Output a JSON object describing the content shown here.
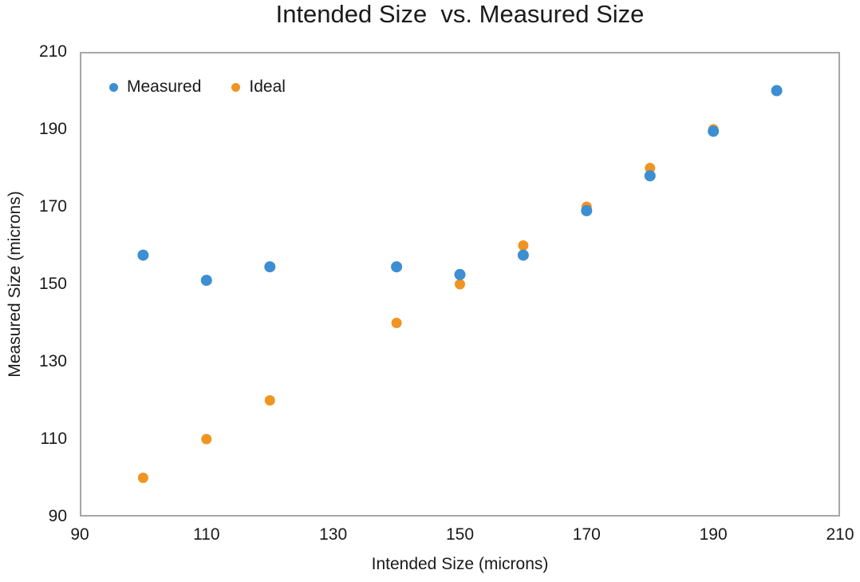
{
  "chart_data": {
    "type": "scatter",
    "title": "Intended Size  vs. Measured Size",
    "xlabel": "Intended Size (microns)",
    "ylabel": "Measured Size (microns)",
    "xlim": [
      90,
      210
    ],
    "ylim": [
      90,
      210
    ],
    "xticks": [
      90,
      110,
      130,
      150,
      170,
      190,
      210
    ],
    "yticks": [
      90,
      110,
      130,
      150,
      170,
      190,
      210
    ],
    "grid": false,
    "legend_position": "top-left-inside",
    "x": [
      100,
      110,
      120,
      140,
      150,
      160,
      170,
      180,
      190,
      200
    ],
    "series": [
      {
        "name": "Ideal",
        "color": "#F09422",
        "values": [
          100,
          110,
          120,
          140,
          150,
          160,
          170,
          180,
          190,
          200
        ]
      },
      {
        "name": "Measured",
        "color": "#3D8ED2",
        "values": [
          157.5,
          151,
          154.5,
          154.5,
          152.5,
          157.5,
          169,
          178,
          189.5,
          200
        ]
      }
    ]
  },
  "legend": {
    "items": [
      {
        "label": "Measured",
        "color": "#3D8ED2"
      },
      {
        "label": "Ideal",
        "color": "#F09422"
      }
    ]
  }
}
